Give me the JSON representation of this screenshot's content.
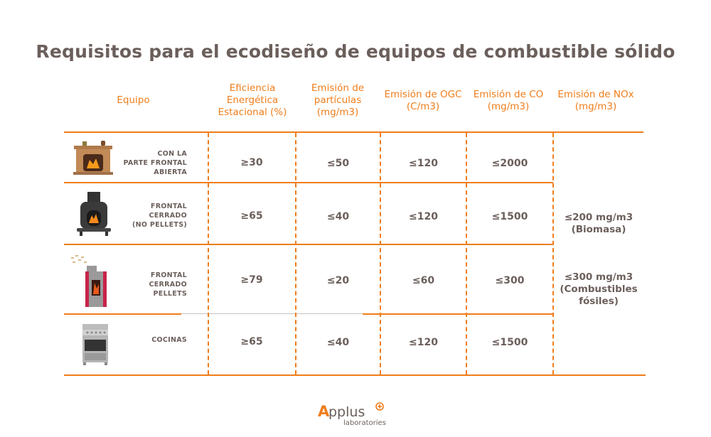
{
  "title": "Requisitos para el ecodiseño de equipos de combustible sólido",
  "headers": [
    "Equipo",
    "Eficiencia Energética Estacional (%)",
    "Emisión de partículas (mg/m3)",
    "Emisión de OGC (C/m3)",
    "Emisión de CO (mg/m3)",
    "Emisión de NOx (mg/m3)"
  ],
  "rows": [
    {
      "equipo": [
        "CON LA",
        "PARTE FRONTAL",
        "ABIERTA"
      ],
      "icon": "fireplace-icon",
      "eficiencia": "≥30",
      "particulas": "≤50",
      "ogc": "≤120",
      "co": "≤2000"
    },
    {
      "equipo": [
        "FRONTAL",
        "CERRADO",
        "(NO PELLETS)"
      ],
      "icon": "wood-stove-icon",
      "eficiencia": "≥65",
      "particulas": "≤40",
      "ogc": "≤120",
      "co": "≤1500"
    },
    {
      "equipo": [
        "FRONTAL",
        "CERRADO",
        "PELLETS"
      ],
      "icon": "pellet-stove-icon",
      "eficiencia": "≥79",
      "particulas": "≤20",
      "ogc": "≤60",
      "co": "≤300"
    },
    {
      "equipo": [
        "COCINAS"
      ],
      "icon": "cooker-icon",
      "eficiencia": "≥65",
      "particulas": "≤40",
      "ogc": "≤120",
      "co": "≤1500"
    }
  ],
  "nox": {
    "biomasa_value": "≤200 mg/m3",
    "biomasa_label": "(Biomasa)",
    "fosiles_value": "≤300 mg/m3",
    "fosiles_label1": "(Combustibles",
    "fosiles_label2": "fósiles)"
  },
  "logo": {
    "name": "Applus",
    "sub": "laboratories"
  },
  "colors": {
    "accent": "#f07d1a",
    "text": "#6b5f5b"
  }
}
